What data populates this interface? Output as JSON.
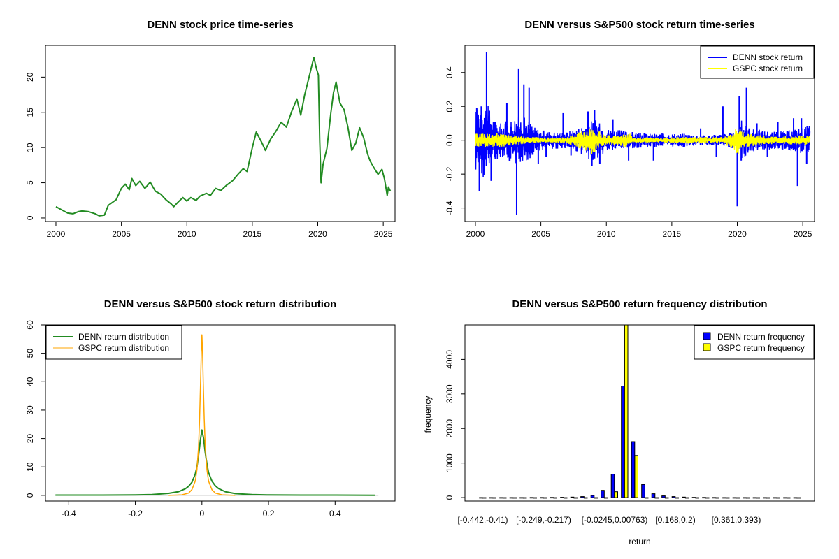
{
  "chart_data": [
    {
      "type": "line",
      "title": "DENN stock price time-series",
      "xlabel": "",
      "ylabel": "",
      "xlim": [
        1999.2,
        2025.9
      ],
      "ylim": [
        -0.5,
        24.5
      ],
      "xticks": [
        2000,
        2005,
        2010,
        2015,
        2020,
        2025
      ],
      "yticks": [
        0,
        5,
        10,
        15,
        20
      ],
      "color": "#228B22",
      "series": [
        {
          "points": [
            [
              2000.0,
              1.6
            ],
            [
              2000.3,
              1.3
            ],
            [
              2000.6,
              1.0
            ],
            [
              2000.9,
              0.7
            ],
            [
              2001.3,
              0.6
            ],
            [
              2001.7,
              0.9
            ],
            [
              2002.0,
              1.0
            ],
            [
              2002.5,
              0.9
            ],
            [
              2003.0,
              0.6
            ],
            [
              2003.3,
              0.3
            ],
            [
              2003.7,
              0.4
            ],
            [
              2004.0,
              1.8
            ],
            [
              2004.3,
              2.2
            ],
            [
              2004.6,
              2.6
            ],
            [
              2005.0,
              4.2
            ],
            [
              2005.3,
              4.8
            ],
            [
              2005.6,
              4.0
            ],
            [
              2005.8,
              5.6
            ],
            [
              2006.1,
              4.6
            ],
            [
              2006.4,
              5.2
            ],
            [
              2006.8,
              4.2
            ],
            [
              2007.2,
              5.1
            ],
            [
              2007.6,
              3.8
            ],
            [
              2008.0,
              3.4
            ],
            [
              2008.4,
              2.6
            ],
            [
              2008.8,
              2.0
            ],
            [
              2009.0,
              1.6
            ],
            [
              2009.3,
              2.2
            ],
            [
              2009.7,
              2.9
            ],
            [
              2010.0,
              2.4
            ],
            [
              2010.3,
              2.9
            ],
            [
              2010.7,
              2.5
            ],
            [
              2011.0,
              3.1
            ],
            [
              2011.5,
              3.5
            ],
            [
              2011.8,
              3.2
            ],
            [
              2012.2,
              4.2
            ],
            [
              2012.6,
              3.9
            ],
            [
              2013.0,
              4.6
            ],
            [
              2013.5,
              5.3
            ],
            [
              2013.9,
              6.2
            ],
            [
              2014.3,
              7.0
            ],
            [
              2014.6,
              6.6
            ],
            [
              2015.0,
              10.0
            ],
            [
              2015.3,
              12.2
            ],
            [
              2015.7,
              10.8
            ],
            [
              2016.0,
              9.6
            ],
            [
              2016.4,
              11.2
            ],
            [
              2016.8,
              12.3
            ],
            [
              2017.2,
              13.6
            ],
            [
              2017.6,
              12.9
            ],
            [
              2018.0,
              15.1
            ],
            [
              2018.4,
              16.9
            ],
            [
              2018.7,
              14.6
            ],
            [
              2019.0,
              17.5
            ],
            [
              2019.4,
              20.5
            ],
            [
              2019.7,
              22.8
            ],
            [
              2019.9,
              21.2
            ],
            [
              2020.05,
              20.3
            ],
            [
              2020.15,
              11.0
            ],
            [
              2020.25,
              5.0
            ],
            [
              2020.4,
              7.6
            ],
            [
              2020.7,
              9.9
            ],
            [
              2021.0,
              14.9
            ],
            [
              2021.2,
              17.8
            ],
            [
              2021.4,
              19.3
            ],
            [
              2021.7,
              16.3
            ],
            [
              2022.0,
              15.4
            ],
            [
              2022.3,
              12.9
            ],
            [
              2022.6,
              9.6
            ],
            [
              2022.9,
              10.6
            ],
            [
              2023.2,
              12.8
            ],
            [
              2023.5,
              11.4
            ],
            [
              2023.8,
              9.1
            ],
            [
              2024.0,
              8.1
            ],
            [
              2024.3,
              7.1
            ],
            [
              2024.6,
              6.2
            ],
            [
              2024.9,
              6.9
            ],
            [
              2025.1,
              5.5
            ],
            [
              2025.3,
              3.2
            ],
            [
              2025.4,
              4.4
            ],
            [
              2025.55,
              3.8
            ]
          ]
        }
      ]
    },
    {
      "type": "line",
      "title": "DENN versus S&P500 stock return time-series",
      "xlabel": "",
      "ylabel": "",
      "xlim": [
        1999.2,
        2025.9
      ],
      "ylim": [
        -0.48,
        0.56
      ],
      "xticks": [
        2000,
        2005,
        2010,
        2015,
        2020,
        2025
      ],
      "yticks": [
        -0.4,
        -0.2,
        0.0,
        0.2,
        0.4
      ],
      "legend_position": "top-right",
      "series": [
        {
          "name": "DENN stock return",
          "color": "#0000FF",
          "band": [
            [
              2000,
              0.18
            ],
            [
              2000.5,
              0.25
            ],
            [
              2001,
              0.2
            ],
            [
              2001.5,
              0.12
            ],
            [
              2002,
              0.1
            ],
            [
              2002.5,
              0.12
            ],
            [
              2003,
              0.14
            ],
            [
              2003.5,
              0.14
            ],
            [
              2004,
              0.13
            ],
            [
              2004.5,
              0.08
            ],
            [
              2005,
              0.06
            ],
            [
              2006,
              0.05
            ],
            [
              2007,
              0.05
            ],
            [
              2008,
              0.08
            ],
            [
              2008.8,
              0.12
            ],
            [
              2009.2,
              0.12
            ],
            [
              2010,
              0.07
            ],
            [
              2011,
              0.06
            ],
            [
              2012,
              0.05
            ],
            [
              2013,
              0.04
            ],
            [
              2014,
              0.04
            ],
            [
              2015,
              0.04
            ],
            [
              2016,
              0.04
            ],
            [
              2017,
              0.03
            ],
            [
              2018,
              0.03
            ],
            [
              2019,
              0.04
            ],
            [
              2020,
              0.05
            ],
            [
              2020.3,
              0.12
            ],
            [
              2021,
              0.07
            ],
            [
              2022,
              0.06
            ],
            [
              2023,
              0.05
            ],
            [
              2024,
              0.06
            ],
            [
              2025,
              0.08
            ],
            [
              2025.55,
              0.09
            ]
          ],
          "spikes": [
            [
              2000.1,
              0.19
            ],
            [
              2000.3,
              -0.3
            ],
            [
              2000.45,
              0.2
            ],
            [
              2000.85,
              0.52
            ],
            [
              2001.2,
              -0.24
            ],
            [
              2002.4,
              0.22
            ],
            [
              2003.15,
              -0.44
            ],
            [
              2003.3,
              0.42
            ],
            [
              2003.7,
              0.33
            ],
            [
              2004.1,
              0.31
            ],
            [
              2004.8,
              -0.14
            ],
            [
              2005.4,
              -0.1
            ],
            [
              2006.7,
              0.16
            ],
            [
              2007.3,
              -0.09
            ],
            [
              2008.6,
              0.17
            ],
            [
              2008.9,
              -0.15
            ],
            [
              2009.1,
              0.18
            ],
            [
              2009.5,
              -0.14
            ],
            [
              2010.5,
              0.12
            ],
            [
              2011.7,
              -0.12
            ],
            [
              2013.6,
              -0.12
            ],
            [
              2017.2,
              0.07
            ],
            [
              2018.4,
              -0.1
            ],
            [
              2018.9,
              0.2
            ],
            [
              2020.0,
              -0.39
            ],
            [
              2020.15,
              0.26
            ],
            [
              2020.3,
              -0.12
            ],
            [
              2020.7,
              0.31
            ],
            [
              2021.5,
              0.1
            ],
            [
              2022.3,
              -0.1
            ],
            [
              2023.1,
              0.11
            ],
            [
              2024.3,
              0.13
            ],
            [
              2024.6,
              -0.27
            ],
            [
              2024.9,
              0.13
            ],
            [
              2025.3,
              -0.14
            ]
          ]
        },
        {
          "name": "GSPC stock return",
          "color": "#FFFF00",
          "band": [
            [
              2000,
              0.04
            ],
            [
              2001,
              0.04
            ],
            [
              2002,
              0.04
            ],
            [
              2003,
              0.03
            ],
            [
              2004,
              0.02
            ],
            [
              2006,
              0.015
            ],
            [
              2007,
              0.02
            ],
            [
              2008,
              0.05
            ],
            [
              2008.8,
              0.09
            ],
            [
              2009.3,
              0.06
            ],
            [
              2010,
              0.03
            ],
            [
              2011,
              0.03
            ],
            [
              2011.7,
              0.05
            ],
            [
              2012,
              0.02
            ],
            [
              2014,
              0.015
            ],
            [
              2016,
              0.02
            ],
            [
              2018,
              0.02
            ],
            [
              2019,
              0.02
            ],
            [
              2020.2,
              0.09
            ],
            [
              2020.6,
              0.04
            ],
            [
              2022,
              0.03
            ],
            [
              2023,
              0.02
            ],
            [
              2025,
              0.03
            ],
            [
              2025.55,
              0.03
            ]
          ]
        }
      ]
    },
    {
      "type": "line",
      "title": "DENN versus S&P500 stock return distribution",
      "xlabel": "",
      "ylabel": "",
      "xlim": [
        -0.47,
        0.58
      ],
      "ylim": [
        -2,
        60
      ],
      "xticks": [
        -0.4,
        -0.2,
        0.0,
        0.2,
        0.4
      ],
      "yticks": [
        0,
        10,
        20,
        30,
        40,
        50,
        60
      ],
      "legend_position": "top-left",
      "series": [
        {
          "name": "DENN return distribution",
          "color": "#228B22",
          "points": [
            [
              -0.44,
              0.1
            ],
            [
              -0.3,
              0.1
            ],
            [
              -0.2,
              0.15
            ],
            [
              -0.15,
              0.3
            ],
            [
              -0.1,
              0.7
            ],
            [
              -0.07,
              1.3
            ],
            [
              -0.05,
              2.3
            ],
            [
              -0.04,
              3.2
            ],
            [
              -0.03,
              4.6
            ],
            [
              -0.02,
              7.5
            ],
            [
              -0.015,
              10.0
            ],
            [
              -0.01,
              14.0
            ],
            [
              -0.005,
              19.0
            ],
            [
              0.0,
              23.0
            ],
            [
              0.005,
              20.0
            ],
            [
              0.01,
              15.0
            ],
            [
              0.015,
              11.0
            ],
            [
              0.02,
              8.0
            ],
            [
              0.03,
              5.0
            ],
            [
              0.04,
              3.4
            ],
            [
              0.05,
              2.4
            ],
            [
              0.07,
              1.3
            ],
            [
              0.1,
              0.6
            ],
            [
              0.15,
              0.3
            ],
            [
              0.2,
              0.15
            ],
            [
              0.3,
              0.1
            ],
            [
              0.4,
              0.08
            ],
            [
              0.52,
              0.05
            ]
          ]
        },
        {
          "name": "GSPC return distribution",
          "color": "#FFA500",
          "points": [
            [
              -0.1,
              0.0
            ],
            [
              -0.06,
              0.2
            ],
            [
              -0.04,
              0.8
            ],
            [
              -0.03,
              2.0
            ],
            [
              -0.02,
              5.0
            ],
            [
              -0.015,
              9.0
            ],
            [
              -0.01,
              17.0
            ],
            [
              -0.007,
              27.0
            ],
            [
              -0.004,
              40.0
            ],
            [
              -0.002,
              50.0
            ],
            [
              0.0,
              56.5
            ],
            [
              0.002,
              50.0
            ],
            [
              0.004,
              40.0
            ],
            [
              0.007,
              27.0
            ],
            [
              0.01,
              17.0
            ],
            [
              0.015,
              9.0
            ],
            [
              0.02,
              5.0
            ],
            [
              0.03,
              2.0
            ],
            [
              0.04,
              0.8
            ],
            [
              0.06,
              0.2
            ],
            [
              0.1,
              0.0
            ]
          ]
        }
      ]
    },
    {
      "type": "bar",
      "title": "DENN versus S&P500 return frequency distribution",
      "xlabel": "return",
      "ylabel": "frequency",
      "ylim": [
        -100,
        5000
      ],
      "yticks": [
        0,
        1000,
        2000,
        3000,
        4000
      ],
      "category_labels": [
        {
          "index": 0,
          "text": "[-0.442,-0.41)"
        },
        {
          "index": 6,
          "text": "[-0.249,-0.217)"
        },
        {
          "index": 13,
          "text": "[-0.0245,0.00763)"
        },
        {
          "index": 19,
          "text": "[0.168,0.2)"
        },
        {
          "index": 25,
          "text": "[0.361,0.393)"
        }
      ],
      "legend_position": "top-right",
      "series": [
        {
          "name": "DENN return frequency",
          "color": "#0000FF",
          "values": [
            1,
            1,
            2,
            1,
            2,
            3,
            4,
            6,
            10,
            15,
            30,
            60,
            210,
            680,
            3230,
            1620,
            380,
            110,
            50,
            30,
            15,
            8,
            5,
            3,
            2,
            2,
            2,
            1,
            1,
            1,
            1,
            1
          ]
        },
        {
          "name": "GSPC return frequency",
          "color": "#FFFF00",
          "values": [
            0,
            0,
            0,
            0,
            0,
            0,
            0,
            0,
            0,
            0,
            0,
            0,
            0,
            170,
            5000,
            1220,
            0,
            0,
            0,
            0,
            0,
            0,
            0,
            0,
            0,
            0,
            0,
            0,
            0,
            0,
            0,
            0
          ]
        }
      ]
    }
  ]
}
